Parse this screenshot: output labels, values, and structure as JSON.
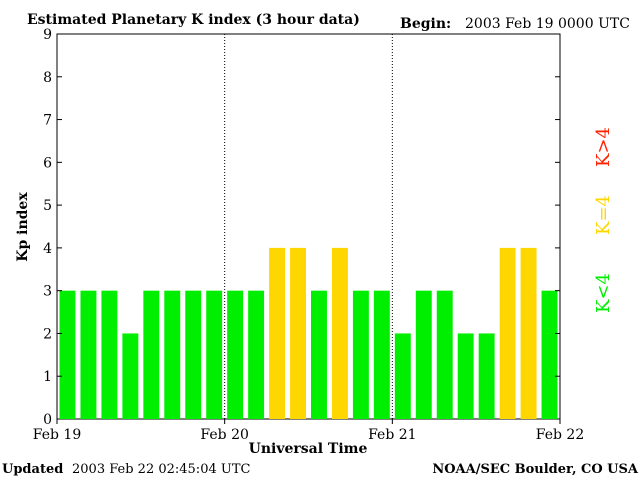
{
  "chart_data": {
    "type": "bar",
    "title": "Estimated Planetary K index (3 hour data)",
    "begin_label": "Begin:",
    "begin_value": "2003 Feb 19 0000 UTC",
    "ylabel": "Kp index",
    "xlabel": "Universal Time",
    "ylim": [
      0,
      9
    ],
    "yticks": [
      "0",
      "1",
      "2",
      "3",
      "4",
      "5",
      "6",
      "7",
      "8",
      "9"
    ],
    "xticks": [
      "Feb 19",
      "Feb 20",
      "Feb 21",
      "Feb 22"
    ],
    "values": [
      3,
      3,
      3,
      2,
      3,
      3,
      3,
      3,
      3,
      3,
      4,
      4,
      3,
      4,
      3,
      3,
      2,
      3,
      3,
      2,
      2,
      4,
      4,
      3
    ],
    "thresholds": {
      "green_below": 4,
      "yellow_equal": 4,
      "red_above": 4
    },
    "colors": {
      "green": "#00ee00",
      "yellow": "#ffd700",
      "red": "#ff2200",
      "axis": "#000000"
    },
    "legend": [
      {
        "label": "K>4",
        "color": "#ff2200"
      },
      {
        "label": "K=4",
        "color": "#ffd700"
      },
      {
        "label": "K<4",
        "color": "#00ee00"
      }
    ]
  },
  "footer": {
    "updated_label": "Updated",
    "updated_value": "2003 Feb 22 02:45:04 UTC",
    "credit": "NOAA/SEC Boulder, CO USA"
  }
}
